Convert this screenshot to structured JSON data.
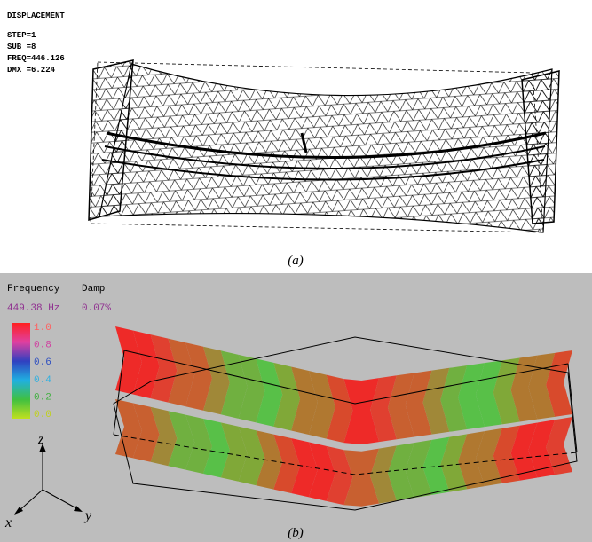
{
  "panel_a": {
    "title": "DISPLACEMENT",
    "lines": [
      "STEP=1",
      "SUB =8",
      "FREQ=446.126",
      "DMX =6.224"
    ],
    "caption": "(a)"
  },
  "panel_b": {
    "header": [
      "Frequency",
      "Damp"
    ],
    "readout": [
      "449.38 Hz",
      "0.07%"
    ],
    "scale_labels": [
      "1.0",
      "0.8",
      "0.6",
      "0.4",
      "0.2",
      "0.0"
    ],
    "axes": [
      "z",
      "x",
      "y"
    ],
    "caption": "(b)"
  }
}
